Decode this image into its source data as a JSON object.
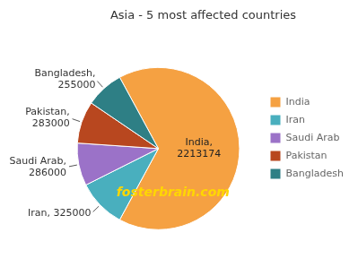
{
  "chart_data": {
    "type": "pie",
    "title": "Asia - 5 most affected countries",
    "categories": [
      "India",
      "Iran",
      "Saudi Arab",
      "Pakistan",
      "Bangladesh"
    ],
    "values": [
      2213174,
      325000,
      286000,
      283000,
      255000
    ],
    "colors": [
      "#F5A142",
      "#49AFBE",
      "#9B72C8",
      "#B8471F",
      "#2E7F85"
    ],
    "data_labels": true,
    "value_labels": [
      "India,\n2213174",
      "Iran, 325000",
      "Saudi Arab,\n286000",
      "Pakistan,\n283000",
      "Bangladesh,\n255000"
    ],
    "legend": "right",
    "annotations": [
      {
        "text": "fosterbrain.com",
        "color": "#FFD700"
      }
    ]
  }
}
